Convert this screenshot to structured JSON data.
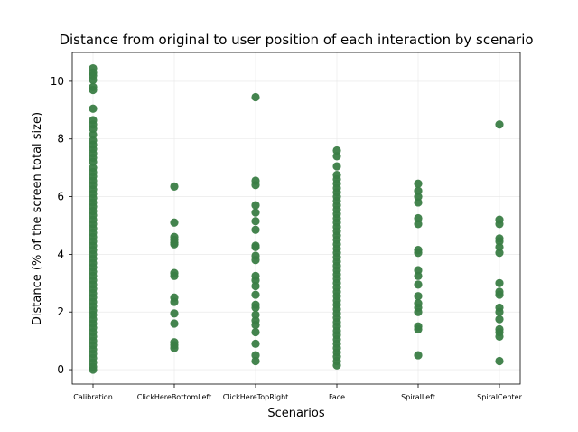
{
  "chart_data": {
    "type": "scatter",
    "title": "Distance from original to user position of each interaction by scenario",
    "xlabel": "Scenarios",
    "ylabel": "Distance (% of the screen total size)",
    "ylim": [
      -0.5,
      11.0
    ],
    "yticks": [
      0,
      2,
      4,
      6,
      8,
      10
    ],
    "ytick_labels": [
      "0",
      "2",
      "4",
      "6",
      "8",
      "10"
    ],
    "grid": true,
    "color": "#3a7d44",
    "categories": [
      "Calibration",
      "ClickHereBottomLeft",
      "ClickHereTopRight",
      "Face",
      "SpiralLeft",
      "SpiralCenter"
    ],
    "series": [
      {
        "values": [
          [
            0,
            10.45
          ],
          [
            0,
            10.3
          ],
          [
            0,
            10.2
          ],
          [
            0,
            10.05
          ],
          [
            0,
            9.8
          ],
          [
            0,
            9.7
          ],
          [
            0,
            9.05
          ],
          [
            0,
            8.65
          ],
          [
            0,
            8.5
          ],
          [
            0,
            8.35
          ],
          [
            0,
            8.15
          ],
          [
            0,
            7.95
          ],
          [
            0,
            7.8
          ],
          [
            0,
            7.65
          ],
          [
            0,
            7.5
          ],
          [
            0,
            7.35
          ],
          [
            0,
            7.2
          ],
          [
            0,
            7.0
          ],
          [
            0,
            6.85
          ],
          [
            0,
            6.7
          ],
          [
            0,
            6.55
          ],
          [
            0,
            6.4
          ],
          [
            0,
            6.25
          ],
          [
            0,
            6.1
          ],
          [
            0,
            5.95
          ],
          [
            0,
            5.8
          ],
          [
            0,
            5.65
          ],
          [
            0,
            5.5
          ],
          [
            0,
            5.35
          ],
          [
            0,
            5.2
          ],
          [
            0,
            5.05
          ],
          [
            0,
            4.9
          ],
          [
            0,
            4.75
          ],
          [
            0,
            4.6
          ],
          [
            0,
            4.45
          ],
          [
            0,
            4.3
          ],
          [
            0,
            4.15
          ],
          [
            0,
            4.0
          ],
          [
            0,
            3.85
          ],
          [
            0,
            3.7
          ],
          [
            0,
            3.55
          ],
          [
            0,
            3.4
          ],
          [
            0,
            3.25
          ],
          [
            0,
            3.1
          ],
          [
            0,
            2.95
          ],
          [
            0,
            2.8
          ],
          [
            0,
            2.65
          ],
          [
            0,
            2.5
          ],
          [
            0,
            2.35
          ],
          [
            0,
            2.2
          ],
          [
            0,
            2.05
          ],
          [
            0,
            1.9
          ],
          [
            0,
            1.75
          ],
          [
            0,
            1.6
          ],
          [
            0,
            1.45
          ],
          [
            0,
            1.3
          ],
          [
            0,
            1.15
          ],
          [
            0,
            1.0
          ],
          [
            0,
            0.85
          ],
          [
            0,
            0.7
          ],
          [
            0,
            0.55
          ],
          [
            0,
            0.4
          ],
          [
            0,
            0.25
          ],
          [
            0,
            0.1
          ],
          [
            0,
            0.0
          ],
          [
            1,
            6.35
          ],
          [
            1,
            5.1
          ],
          [
            1,
            4.6
          ],
          [
            1,
            4.5
          ],
          [
            1,
            4.4
          ],
          [
            1,
            4.35
          ],
          [
            1,
            3.35
          ],
          [
            1,
            3.25
          ],
          [
            1,
            2.5
          ],
          [
            1,
            2.35
          ],
          [
            1,
            1.95
          ],
          [
            1,
            1.6
          ],
          [
            1,
            0.95
          ],
          [
            1,
            0.85
          ],
          [
            1,
            0.75
          ],
          [
            2,
            9.45
          ],
          [
            2,
            6.55
          ],
          [
            2,
            6.4
          ],
          [
            2,
            5.7
          ],
          [
            2,
            5.45
          ],
          [
            2,
            5.15
          ],
          [
            2,
            4.85
          ],
          [
            2,
            4.3
          ],
          [
            2,
            4.25
          ],
          [
            2,
            3.95
          ],
          [
            2,
            3.8
          ],
          [
            2,
            3.25
          ],
          [
            2,
            3.1
          ],
          [
            2,
            2.9
          ],
          [
            2,
            2.6
          ],
          [
            2,
            2.25
          ],
          [
            2,
            2.15
          ],
          [
            2,
            1.9
          ],
          [
            2,
            1.7
          ],
          [
            2,
            1.55
          ],
          [
            2,
            1.3
          ],
          [
            2,
            0.9
          ],
          [
            2,
            0.5
          ],
          [
            2,
            0.3
          ],
          [
            3,
            7.6
          ],
          [
            3,
            7.4
          ],
          [
            3,
            7.05
          ],
          [
            3,
            6.75
          ],
          [
            3,
            6.6
          ],
          [
            3,
            6.45
          ],
          [
            3,
            6.3
          ],
          [
            3,
            6.15
          ],
          [
            3,
            6.0
          ],
          [
            3,
            5.85
          ],
          [
            3,
            5.7
          ],
          [
            3,
            5.55
          ],
          [
            3,
            5.4
          ],
          [
            3,
            5.25
          ],
          [
            3,
            5.1
          ],
          [
            3,
            4.95
          ],
          [
            3,
            4.8
          ],
          [
            3,
            4.65
          ],
          [
            3,
            4.5
          ],
          [
            3,
            4.35
          ],
          [
            3,
            4.2
          ],
          [
            3,
            4.05
          ],
          [
            3,
            3.9
          ],
          [
            3,
            3.75
          ],
          [
            3,
            3.6
          ],
          [
            3,
            3.45
          ],
          [
            3,
            3.3
          ],
          [
            3,
            3.15
          ],
          [
            3,
            3.0
          ],
          [
            3,
            2.85
          ],
          [
            3,
            2.7
          ],
          [
            3,
            2.55
          ],
          [
            3,
            2.4
          ],
          [
            3,
            2.25
          ],
          [
            3,
            2.1
          ],
          [
            3,
            1.95
          ],
          [
            3,
            1.8
          ],
          [
            3,
            1.65
          ],
          [
            3,
            1.5
          ],
          [
            3,
            1.35
          ],
          [
            3,
            1.2
          ],
          [
            3,
            1.05
          ],
          [
            3,
            0.9
          ],
          [
            3,
            0.75
          ],
          [
            3,
            0.6
          ],
          [
            3,
            0.45
          ],
          [
            3,
            0.3
          ],
          [
            3,
            0.15
          ],
          [
            4,
            6.45
          ],
          [
            4,
            6.2
          ],
          [
            4,
            6.0
          ],
          [
            4,
            5.8
          ],
          [
            4,
            5.25
          ],
          [
            4,
            5.05
          ],
          [
            4,
            4.15
          ],
          [
            4,
            4.05
          ],
          [
            4,
            3.45
          ],
          [
            4,
            3.25
          ],
          [
            4,
            2.95
          ],
          [
            4,
            2.55
          ],
          [
            4,
            2.3
          ],
          [
            4,
            2.15
          ],
          [
            4,
            2.0
          ],
          [
            4,
            1.5
          ],
          [
            4,
            1.4
          ],
          [
            4,
            0.5
          ],
          [
            5,
            8.5
          ],
          [
            5,
            5.2
          ],
          [
            5,
            5.05
          ],
          [
            5,
            4.55
          ],
          [
            5,
            4.45
          ],
          [
            5,
            4.25
          ],
          [
            5,
            4.05
          ],
          [
            5,
            3.0
          ],
          [
            5,
            2.7
          ],
          [
            5,
            2.6
          ],
          [
            5,
            2.15
          ],
          [
            5,
            2.0
          ],
          [
            5,
            1.75
          ],
          [
            5,
            1.4
          ],
          [
            5,
            1.3
          ],
          [
            5,
            1.15
          ],
          [
            5,
            0.3
          ]
        ]
      }
    ]
  }
}
